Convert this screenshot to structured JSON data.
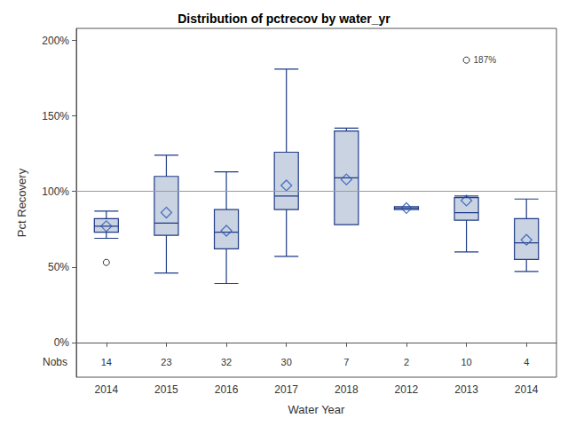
{
  "chart_data": {
    "type": "boxplot",
    "title": "Distribution of pctrecov by water_yr",
    "x_label": "Water Year",
    "y_label": "Pct Recovery",
    "categories": [
      "2014",
      "2015",
      "2016",
      "2017",
      "2018",
      "2012",
      "2013",
      "2014"
    ],
    "boxes": [
      [
        69,
        73,
        77,
        82,
        87
      ],
      [
        46,
        71,
        79,
        110,
        124
      ],
      [
        39,
        62,
        73,
        88,
        113
      ],
      [
        57,
        88,
        97,
        126,
        181
      ],
      [
        78,
        78,
        109,
        140,
        142
      ],
      [
        88,
        88,
        89,
        90,
        90
      ],
      [
        60,
        81,
        86,
        96,
        97
      ],
      [
        47,
        55,
        66,
        82,
        95
      ]
    ],
    "means": [
      77,
      86,
      74,
      104,
      108,
      89,
      94,
      68
    ],
    "outliers": [
      {
        "category_index": 0,
        "value": 53
      },
      {
        "category_index": 6,
        "value": 187,
        "label": "187%"
      }
    ],
    "nobs": {
      "label": "Nobs",
      "values": [
        14,
        23,
        32,
        30,
        7,
        2,
        10,
        4
      ]
    },
    "reference_line": 100,
    "ylim": [
      -23,
      208
    ],
    "yticks": [
      {
        "value": 0,
        "label": "0%"
      },
      {
        "value": 50,
        "label": "50%"
      },
      {
        "value": 100,
        "label": "100%"
      },
      {
        "value": 150,
        "label": "150%"
      },
      {
        "value": 200,
        "label": "200%"
      }
    ],
    "grid": false,
    "color": "#cad3e2",
    "marker": "diamond"
  }
}
